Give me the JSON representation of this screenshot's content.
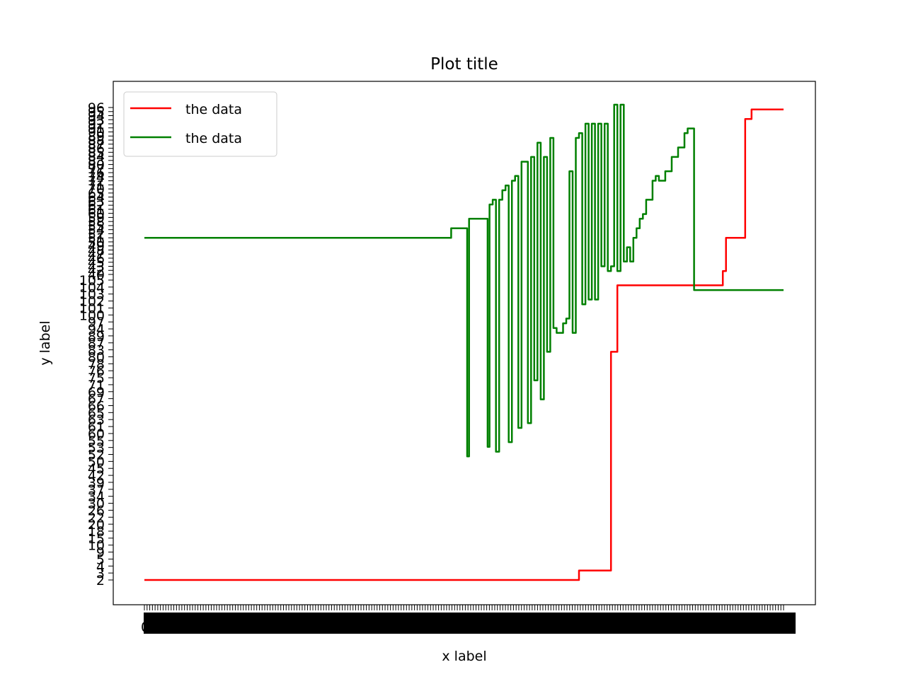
{
  "chart_data": {
    "type": "line",
    "title": "Plot title",
    "xlabel": "x label",
    "ylabel": "y label",
    "grid": false,
    "legend_placement": "upper-left",
    "x_tick_label_note": "x tick labels are dense and overlap into an unreadable solid bar; only '0' at the left edge is discernible",
    "x_first_tick": "0",
    "y_tick_labels_series1": [
      "2",
      "3",
      "4",
      "5",
      "9",
      "10",
      "15",
      "18",
      "20",
      "22",
      "26",
      "30",
      "34",
      "37",
      "39",
      "42",
      "45",
      "50",
      "52",
      "53",
      "55",
      "60",
      "61",
      "63",
      "65",
      "66",
      "67",
      "69",
      "71",
      "75",
      "76",
      "78",
      "80",
      "83",
      "87",
      "89",
      "94",
      "97",
      "100",
      "101",
      "102",
      "103",
      "104",
      "105"
    ],
    "y_tick_labels_series2": [
      "40",
      "42",
      "43",
      "45",
      "46",
      "47",
      "48",
      "49",
      "50",
      "51",
      "52",
      "54",
      "55",
      "58",
      "59",
      "60",
      "61",
      "62",
      "63",
      "64",
      "65",
      "70",
      "71",
      "72",
      "74",
      "76",
      "77",
      "80",
      "83",
      "84",
      "85",
      "86",
      "87",
      "88",
      "89",
      "90",
      "91",
      "92",
      "93",
      "94",
      "95",
      "96"
    ],
    "series": [
      {
        "name": "the data",
        "color": "#ff0000",
        "x": [
          0,
          0.67,
          0.68,
          0.7,
          0.73,
          0.735,
          0.74,
          0.76,
          0.77,
          0.8,
          0.85,
          0.9,
          0.905,
          0.91,
          0.94,
          0.945,
          0.95,
          0.955,
          1.0
        ],
        "y": [
          0,
          0,
          0.02,
          0.02,
          0.48,
          0.48,
          0.62,
          0.62,
          0.62,
          0.62,
          0.62,
          0.62,
          0.65,
          0.72,
          0.97,
          0.97,
          0.99,
          0.99,
          0.99
        ]
      },
      {
        "name": "the data",
        "color": "#008000",
        "x": [
          0,
          0.475,
          0.48,
          0.5,
          0.505,
          0.508,
          0.51,
          0.535,
          0.537,
          0.54,
          0.545,
          0.55,
          0.555,
          0.56,
          0.565,
          0.57,
          0.575,
          0.58,
          0.585,
          0.59,
          0.595,
          0.6,
          0.605,
          0.61,
          0.615,
          0.62,
          0.625,
          0.63,
          0.635,
          0.64,
          0.645,
          0.65,
          0.655,
          0.66,
          0.665,
          0.67,
          0.675,
          0.68,
          0.685,
          0.69,
          0.695,
          0.7,
          0.705,
          0.71,
          0.715,
          0.72,
          0.725,
          0.73,
          0.735,
          0.74,
          0.745,
          0.75,
          0.755,
          0.76,
          0.765,
          0.77,
          0.775,
          0.78,
          0.785,
          0.79,
          0.795,
          0.8,
          0.805,
          0.81,
          0.815,
          0.82,
          0.825,
          0.83,
          0.835,
          0.84,
          0.845,
          0.85,
          0.855,
          0.86,
          0.865,
          0.87,
          0.875,
          0.88,
          0.885,
          0.89,
          1.0
        ],
        "y": [
          0.72,
          0.72,
          0.74,
          0.74,
          0.26,
          0.76,
          0.76,
          0.76,
          0.28,
          0.79,
          0.8,
          0.27,
          0.8,
          0.82,
          0.83,
          0.29,
          0.84,
          0.85,
          0.32,
          0.88,
          0.88,
          0.33,
          0.89,
          0.42,
          0.92,
          0.38,
          0.89,
          0.48,
          0.93,
          0.53,
          0.52,
          0.52,
          0.54,
          0.55,
          0.86,
          0.52,
          0.93,
          0.94,
          0.58,
          0.96,
          0.59,
          0.96,
          0.59,
          0.96,
          0.66,
          0.96,
          0.65,
          0.66,
          1.0,
          0.65,
          1.0,
          0.67,
          0.7,
          0.67,
          0.72,
          0.74,
          0.76,
          0.77,
          0.8,
          0.8,
          0.84,
          0.85,
          0.84,
          0.84,
          0.86,
          0.86,
          0.89,
          0.89,
          0.91,
          0.91,
          0.94,
          0.95,
          0.95,
          0.61,
          0.61,
          0.61,
          0.61,
          0.61,
          0.61,
          0.61,
          0.61
        ]
      }
    ]
  }
}
